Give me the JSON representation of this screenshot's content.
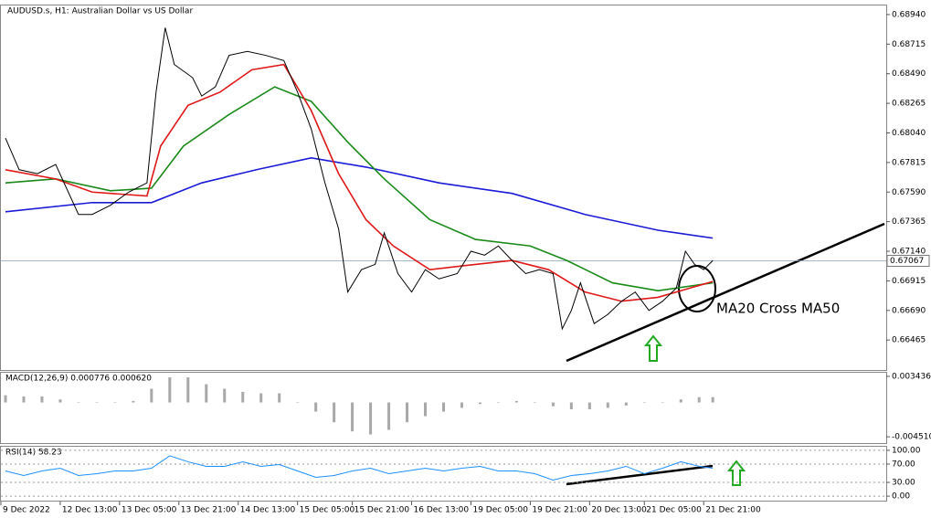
{
  "chart_data": [
    {
      "type": "line",
      "title": "AUDUSD.s, H1:  Australian Dollar vs US Dollar",
      "xlim": [
        0,
        194
      ],
      "ylim": [
        0.66237,
        0.69009
      ],
      "yticks": [
        {
          "value": 0.6894,
          "label": "0.68940"
        },
        0.68715,
        {
          "value": 0.6849,
          "label": "0.68490"
        },
        0.68265,
        {
          "value": 0.6804,
          "label": "0.68040"
        },
        0.67815,
        {
          "value": 0.6759,
          "label": "0.67590"
        },
        0.67365,
        {
          "value": 0.6714,
          "label": "0.67140"
        },
        0.66915,
        {
          "value": 0.6669,
          "label": "0.66690"
        },
        0.66465
      ],
      "xticks": [
        {
          "value": 0,
          "label": "9 Dec 2022"
        },
        {
          "value": 13,
          "label": "12 Dec 13:00"
        },
        {
          "value": 26,
          "label": "13 Dec 05:00"
        },
        {
          "value": 39,
          "label": "13 Dec 21:00"
        },
        {
          "value": 52,
          "label": "14 Dec 13:00"
        },
        {
          "value": 65,
          "label": "15 Dec 05:00"
        },
        {
          "value": 77,
          "label": "15 Dec 21:00"
        },
        {
          "value": 90,
          "label": "16 Dec 13:00"
        },
        {
          "value": 103,
          "label": "19 Dec 05:00"
        },
        {
          "value": 116,
          "label": "19 Dec 21:00"
        },
        {
          "value": 129,
          "label": "20 Dec 13:00"
        },
        {
          "value": 141,
          "label": "21 Dec 05:00"
        },
        {
          "value": 154,
          "label": "21 Dec 21:00"
        }
      ],
      "current_price": {
        "value": 0.67067,
        "label": "0.67067"
      },
      "annotation": "MA20 Cross MA50",
      "series": [
        {
          "color": "#1a1ad8",
          "x": [
            1,
            20,
            33,
            44,
            56,
            68,
            80,
            96,
            112,
            128,
            144,
            156
          ],
          "values": [
            0.6744,
            0.6751,
            0.6751,
            0.6766,
            0.6776,
            0.6785,
            0.6778,
            0.6766,
            0.6758,
            0.6742,
            0.673,
            0.6724
          ]
        },
        {
          "color": "#1a8a1a",
          "x": [
            1,
            12,
            24,
            33,
            40,
            50,
            60,
            68,
            76,
            84,
            94,
            104,
            116,
            124,
            134,
            144,
            156
          ],
          "values": [
            0.6766,
            0.6769,
            0.676,
            0.6762,
            0.6794,
            0.6818,
            0.6839,
            0.6828,
            0.6797,
            0.6769,
            0.6738,
            0.6723,
            0.6718,
            0.6707,
            0.669,
            0.6684,
            0.669
          ]
        },
        {
          "color": "#e01818",
          "x": [
            1,
            12,
            20,
            32,
            35,
            41,
            48,
            55,
            62,
            68,
            74,
            80,
            86,
            94,
            104,
            112,
            120,
            128,
            136,
            144,
            156
          ],
          "values": [
            0.6776,
            0.6769,
            0.6759,
            0.6756,
            0.6794,
            0.6825,
            0.6835,
            0.6852,
            0.6856,
            0.6821,
            0.6773,
            0.6738,
            0.6718,
            0.67,
            0.6704,
            0.6707,
            0.67,
            0.6683,
            0.6676,
            0.6679,
            0.6691
          ]
        },
        {
          "color": "#000000",
          "x": [
            1,
            4,
            8,
            12,
            17,
            20,
            24,
            28,
            32,
            34,
            36,
            38,
            42,
            44,
            47,
            50,
            54,
            58,
            62,
            65,
            68,
            71,
            74,
            76,
            79,
            82,
            84,
            87,
            90,
            93,
            96,
            100,
            103,
            106,
            109,
            112,
            115,
            118,
            121,
            123,
            125,
            127,
            130,
            133,
            136,
            139,
            142,
            145,
            148,
            150,
            152,
            154,
            156
          ],
          "values": [
            0.68,
            0.6776,
            0.6773,
            0.678,
            0.6742,
            0.6742,
            0.6749,
            0.6759,
            0.6766,
            0.6835,
            0.6884,
            0.6856,
            0.6846,
            0.6832,
            0.6839,
            0.6863,
            0.6866,
            0.6863,
            0.6859,
            0.6835,
            0.6807,
            0.6766,
            0.6731,
            0.6683,
            0.67,
            0.6704,
            0.6728,
            0.6697,
            0.6683,
            0.67,
            0.6693,
            0.6697,
            0.6714,
            0.6711,
            0.6718,
            0.6707,
            0.6697,
            0.67,
            0.6697,
            0.6655,
            0.6669,
            0.669,
            0.6659,
            0.6666,
            0.6676,
            0.6683,
            0.6669,
            0.6676,
            0.6686,
            0.6714,
            0.6704,
            0.67,
            0.6707
          ]
        }
      ]
    },
    {
      "type": "bar",
      "title": "MACD(12,26,9) 0.000776 0.000620",
      "color": "#a8a8a8",
      "xlim": [
        0,
        194
      ],
      "ylim": [
        -0.00534,
        0.00391
      ],
      "yticks": [
        0.003436,
        {
          "value": -0.00451,
          "label": "-0.004510"
        }
      ],
      "x": [
        1,
        5,
        9,
        13,
        17,
        21,
        25,
        29,
        33,
        37,
        41,
        45,
        49,
        53,
        57,
        61,
        65,
        69,
        73,
        77,
        81,
        85,
        89,
        93,
        97,
        101,
        105,
        109,
        113,
        117,
        121,
        125,
        129,
        133,
        137,
        141,
        145,
        149,
        153,
        156
      ],
      "values": [
        0.00095,
        0.0008,
        0.0008,
        0.0004,
        0,
        0,
        0,
        0.0002,
        0.0018,
        0.0033,
        0.0033,
        0.0024,
        0.0018,
        0.0014,
        0.0012,
        0.0012,
        0,
        -0.0012,
        -0.0026,
        -0.0038,
        -0.0042,
        -0.0036,
        -0.0026,
        -0.0018,
        -0.0012,
        -0.0007,
        -0.0002,
        0,
        0.0002,
        0,
        -0.0005,
        -0.0009,
        -0.0009,
        -0.0007,
        -0.0004,
        0,
        0,
        0.0004,
        0.0007,
        0.0007
      ]
    },
    {
      "type": "line",
      "title": "RSI(14) 58.23",
      "grid": true,
      "xlim": [
        0,
        194
      ],
      "ylim": [
        -9.8,
        107.8
      ],
      "yticks": [
        {
          "value": 100,
          "label": "100.00"
        },
        {
          "value": 70,
          "label": "70.00"
        },
        {
          "value": 30,
          "label": "30.00"
        },
        {
          "value": 0,
          "label": "0.00"
        }
      ],
      "series": [
        {
          "color": "#1e90ff",
          "x": [
            1,
            5,
            9,
            13,
            17,
            21,
            25,
            29,
            33,
            37,
            41,
            45,
            49,
            53,
            57,
            61,
            65,
            69,
            73,
            77,
            81,
            85,
            89,
            93,
            97,
            101,
            105,
            109,
            113,
            117,
            121,
            125,
            129,
            133,
            137,
            141,
            145,
            149,
            153,
            156
          ],
          "values": [
            55,
            45,
            55,
            61,
            45,
            49,
            55,
            55,
            61,
            88,
            75,
            65,
            65,
            75,
            65,
            69,
            55,
            41,
            45,
            55,
            61,
            49,
            55,
            61,
            55,
            61,
            65,
            55,
            55,
            49,
            35,
            45,
            49,
            55,
            65,
            49,
            61,
            75,
            65,
            61
          ]
        }
      ]
    }
  ]
}
